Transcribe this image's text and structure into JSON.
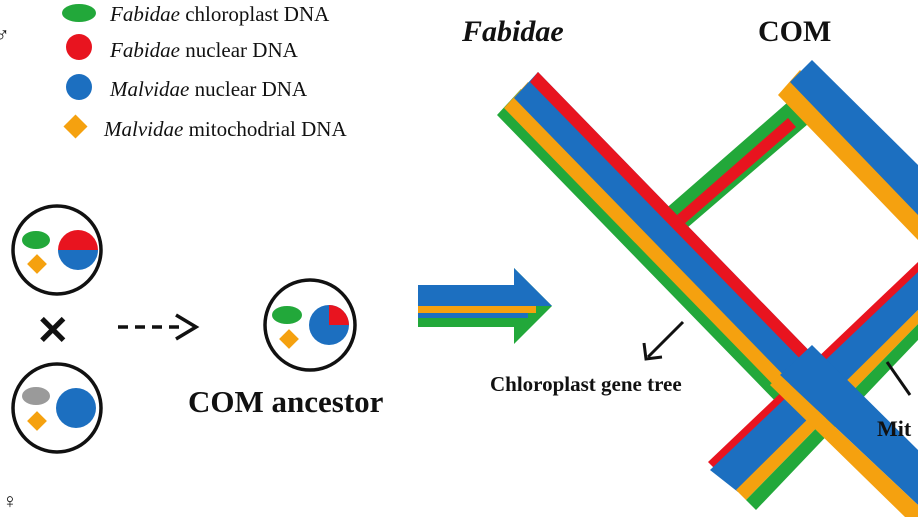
{
  "symbols": {
    "male": "♂",
    "female": "♀"
  },
  "legend": [
    {
      "shape": "ellipse",
      "color": "#22a83a",
      "italic": "Fabidae",
      "rest": " chloroplast DNA"
    },
    {
      "shape": "circle",
      "color": "#e8141f",
      "italic": "Fabidae",
      "rest": " nuclear DNA"
    },
    {
      "shape": "circle",
      "color": "#1c6fc0",
      "italic": "Malvidae",
      "rest": " nuclear DNA"
    },
    {
      "shape": "diamond",
      "color": "#f5a10f",
      "italic": "Malvidae",
      "rest": " mitochodrial DNA"
    }
  ],
  "headers": {
    "left": "Fabidae",
    "right": "COM"
  },
  "cross_symbol": "✕",
  "ancestor_label": "COM ancestor",
  "gene_tree_labels": {
    "chloroplast": "Chloroplast gene tree",
    "mito_partial": "Mit"
  },
  "colors": {
    "green": "#22a83a",
    "red": "#e8141f",
    "blue": "#1c6fc0",
    "orange": "#f5a10f",
    "grey": "#9a9a9a",
    "stroke": "#111111"
  }
}
